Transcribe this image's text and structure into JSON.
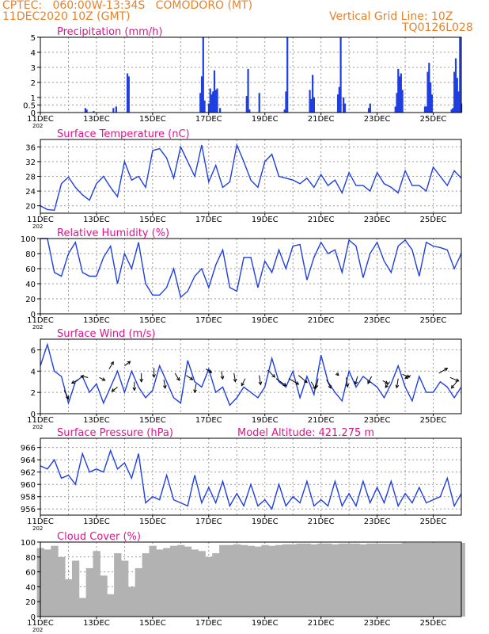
{
  "header": {
    "line1": "CPTEC:   060:00W-13:34S   COMODORO (MT)",
    "line2": "11DEC2020 10Z (GMT)",
    "grid_note": "Vertical Grid Line: 10Z",
    "code": "TQ0126L028",
    "year_marker": "202"
  },
  "colors": {
    "header": "#e8822a",
    "title": "#e0148c",
    "series": "#1f3fe0",
    "cloud": "#b2b2b2"
  },
  "x_axis": {
    "labels": [
      "11DEC",
      "13DEC",
      "15DEC",
      "17DEC",
      "19DEC",
      "21DEC",
      "23DEC",
      "25DEC"
    ],
    "start_day": 11,
    "end_day": 26
  },
  "chart_data": [
    {
      "id": "precip",
      "type": "bar",
      "title": "Precipitation (mm/h)",
      "ylim": [
        0,
        5
      ],
      "yticks": [
        0,
        0.5,
        1,
        2,
        3,
        4,
        5
      ],
      "x": [
        12.6,
        12.65,
        12.9,
        13.6,
        13.7,
        14.1,
        14.15,
        16.7,
        16.75,
        16.8,
        16.85,
        17.0,
        17.05,
        17.1,
        17.15,
        17.2,
        17.25,
        17.3,
        17.4,
        18.35,
        18.4,
        18.45,
        18.8,
        19.7,
        19.75,
        19.8,
        20.6,
        20.65,
        20.7,
        20.75,
        21.6,
        21.65,
        21.7,
        21.8,
        21.85,
        22.7,
        22.75,
        23.65,
        23.7,
        23.75,
        23.8,
        23.85,
        23.9,
        24.7,
        24.75,
        24.8,
        24.85,
        24.9,
        24.95,
        25.65,
        25.7,
        25.75,
        25.8,
        25.85,
        25.9,
        25.95,
        26.0
      ],
      "values": [
        0.3,
        0.2,
        0.1,
        0.3,
        0.4,
        2.6,
        2.4,
        1.3,
        2.4,
        5.0,
        0.8,
        0.6,
        1.6,
        1.2,
        1.4,
        2.8,
        1.5,
        1.6,
        0.3,
        1.1,
        2.9,
        0.2,
        1.3,
        0.2,
        1.4,
        5.0,
        1.5,
        0.9,
        2.5,
        1.0,
        1.2,
        1.7,
        5.0,
        1.0,
        0.6,
        0.3,
        0.6,
        0.4,
        1.3,
        2.9,
        2.4,
        2.6,
        1.5,
        0.4,
        0.4,
        2.7,
        3.3,
        2.0,
        1.2,
        0.2,
        0.3,
        2.7,
        3.6,
        2.3,
        1.4,
        5.0,
        0.6
      ]
    },
    {
      "id": "temp",
      "type": "line",
      "title": "Surface Temperature (nC)",
      "ylim": [
        18,
        38
      ],
      "yticks": [
        20,
        24,
        28,
        32,
        36
      ],
      "x": [
        11.0,
        11.25,
        11.5,
        11.75,
        12.0,
        12.25,
        12.5,
        12.75,
        13.0,
        13.25,
        13.5,
        13.75,
        14.0,
        14.25,
        14.5,
        14.75,
        15.0,
        15.25,
        15.5,
        15.75,
        16.0,
        16.25,
        16.5,
        16.75,
        17.0,
        17.25,
        17.5,
        17.75,
        18.0,
        18.25,
        18.5,
        18.75,
        19.0,
        19.25,
        19.5,
        19.75,
        20.0,
        20.25,
        20.5,
        20.75,
        21.0,
        21.25,
        21.5,
        21.75,
        22.0,
        22.25,
        22.5,
        22.75,
        23.0,
        23.25,
        23.5,
        23.75,
        24.0,
        24.25,
        24.5,
        24.75,
        25.0,
        25.25,
        25.5,
        25.75,
        26.0
      ],
      "values": [
        20.0,
        19.0,
        18.8,
        26.0,
        27.8,
        25.0,
        23.0,
        21.5,
        26.0,
        28.0,
        25.0,
        22.5,
        32.0,
        27.0,
        28.0,
        25.0,
        35.0,
        35.5,
        33.0,
        27.5,
        36.0,
        32.0,
        28.0,
        36.5,
        26.5,
        31.0,
        25.0,
        26.5,
        36.5,
        32.0,
        27.0,
        25.0,
        32.0,
        34.0,
        28.0,
        27.5,
        27.0,
        26.0,
        27.5,
        25.0,
        28.5,
        25.5,
        27.0,
        23.5,
        29.0,
        25.5,
        25.5,
        24.0,
        29.0,
        26.0,
        25.0,
        23.5,
        29.5,
        25.5,
        25.5,
        24.0,
        30.5,
        28.0,
        25.5,
        29.5,
        27.5
      ]
    },
    {
      "id": "rh",
      "type": "line",
      "title": "Relative Humidity (%)",
      "ylim": [
        0,
        100
      ],
      "yticks": [
        0,
        20,
        40,
        60,
        80,
        100
      ],
      "x": [
        11.0,
        11.25,
        11.5,
        11.75,
        12.0,
        12.25,
        12.5,
        12.75,
        13.0,
        13.25,
        13.5,
        13.75,
        14.0,
        14.25,
        14.5,
        14.75,
        15.0,
        15.25,
        15.5,
        15.75,
        16.0,
        16.25,
        16.5,
        16.75,
        17.0,
        17.25,
        17.5,
        17.75,
        18.0,
        18.25,
        18.5,
        18.75,
        19.0,
        19.25,
        19.5,
        19.75,
        20.0,
        20.25,
        20.5,
        20.75,
        21.0,
        21.25,
        21.5,
        21.75,
        22.0,
        22.25,
        22.5,
        22.75,
        23.0,
        23.25,
        23.5,
        23.75,
        24.0,
        24.25,
        24.5,
        24.75,
        25.0,
        25.25,
        25.5,
        25.75,
        26.0
      ],
      "values": [
        100.0,
        100.0,
        55.0,
        50.0,
        80.0,
        95.0,
        55.0,
        50.0,
        50.0,
        75.0,
        90.0,
        40.0,
        80.0,
        60.0,
        95.0,
        40.0,
        25.0,
        25.0,
        35.0,
        60.0,
        22.0,
        30.0,
        50.0,
        60.0,
        35.0,
        65.0,
        85.0,
        35.0,
        30.0,
        75.0,
        75.0,
        35.0,
        70.0,
        55.0,
        85.0,
        60.0,
        90.0,
        92.0,
        45.0,
        75.0,
        95.0,
        80.0,
        85.0,
        55.0,
        98.0,
        90.0,
        48.0,
        80.0,
        95.0,
        70.0,
        55.0,
        90.0,
        98.0,
        85.0,
        50.0,
        95.0,
        90.0,
        88.0,
        85.0,
        60.0,
        80.0
      ]
    },
    {
      "id": "wind",
      "type": "line",
      "title": "Surface Wind (m/s)",
      "ylim": [
        0,
        7
      ],
      "yticks": [
        0,
        2,
        4,
        6
      ],
      "x": [
        11.0,
        11.25,
        11.5,
        11.75,
        12.0,
        12.25,
        12.5,
        12.75,
        13.0,
        13.25,
        13.5,
        13.75,
        14.0,
        14.25,
        14.5,
        14.75,
        15.0,
        15.25,
        15.5,
        15.75,
        16.0,
        16.25,
        16.5,
        16.75,
        17.0,
        17.25,
        17.5,
        17.75,
        18.0,
        18.25,
        18.5,
        18.75,
        19.0,
        19.25,
        19.5,
        19.75,
        20.0,
        20.25,
        20.5,
        20.75,
        21.0,
        21.25,
        21.5,
        21.75,
        22.0,
        22.25,
        22.5,
        22.75,
        23.0,
        23.25,
        23.5,
        23.75,
        24.0,
        24.25,
        24.5,
        24.75,
        25.0,
        25.25,
        25.5,
        25.75,
        26.0
      ],
      "values": [
        4.5,
        6.5,
        4.0,
        3.5,
        1.0,
        3.0,
        3.5,
        2.0,
        2.8,
        1.0,
        2.5,
        4.0,
        2.0,
        4.0,
        2.5,
        1.5,
        2.2,
        4.5,
        3.0,
        1.5,
        1.0,
        5.0,
        3.0,
        2.5,
        4.2,
        2.0,
        2.5,
        0.8,
        1.5,
        2.5,
        2.0,
        1.5,
        2.5,
        5.2,
        3.0,
        2.5,
        4.0,
        1.5,
        3.5,
        1.8,
        5.5,
        3.0,
        2.0,
        1.2,
        4.0,
        2.5,
        3.5,
        3.0,
        2.5,
        1.5,
        2.8,
        4.5,
        2.5,
        1.2,
        3.5,
        2.0,
        2.0,
        3.0,
        2.5,
        1.5,
        2.5
      ],
      "vectors": [
        {
          "x": 11.85,
          "y": 2.2,
          "u": 0.6,
          "v": -1.2
        },
        {
          "x": 12.35,
          "y": 3.2,
          "u": -0.9,
          "v": -0.5
        },
        {
          "x": 12.7,
          "y": 3.4,
          "u": -1.0,
          "v": 0.2
        },
        {
          "x": 13.1,
          "y": 3.4,
          "u": 0.8,
          "v": -0.4
        },
        {
          "x": 13.45,
          "y": 4.2,
          "u": 0.6,
          "v": 1.0
        },
        {
          "x": 13.75,
          "y": 2.5,
          "u": -0.8,
          "v": -0.6
        },
        {
          "x": 14.0,
          "y": 4.5,
          "u": 0.8,
          "v": 0.6
        },
        {
          "x": 14.35,
          "y": 3.0,
          "u": 0.0,
          "v": -1.2
        },
        {
          "x": 14.6,
          "y": 3.8,
          "u": 0.0,
          "v": -1.2
        },
        {
          "x": 15.05,
          "y": 4.3,
          "u": 0.0,
          "v": -1.3
        },
        {
          "x": 15.4,
          "y": 3.2,
          "u": 0.2,
          "v": -1.2
        },
        {
          "x": 15.8,
          "y": 3.8,
          "u": 0.6,
          "v": -1.0
        },
        {
          "x": 16.2,
          "y": 3.6,
          "u": 0.9,
          "v": -0.6
        },
        {
          "x": 16.55,
          "y": 2.8,
          "u": -0.2,
          "v": -1.2
        },
        {
          "x": 16.9,
          "y": 4.2,
          "u": 0.8,
          "v": -0.5
        },
        {
          "x": 17.45,
          "y": 4.0,
          "u": 0.2,
          "v": -1.1
        },
        {
          "x": 17.9,
          "y": 3.8,
          "u": 0.2,
          "v": -1.2
        },
        {
          "x": 18.3,
          "y": 3.3,
          "u": -0.5,
          "v": -1.0
        },
        {
          "x": 18.8,
          "y": 3.6,
          "u": 0.2,
          "v": -1.3
        },
        {
          "x": 19.1,
          "y": 4.1,
          "u": 1.0,
          "v": -1.0
        },
        {
          "x": 19.4,
          "y": 3.3,
          "u": 1.4,
          "v": -1.0
        },
        {
          "x": 19.85,
          "y": 3.3,
          "u": 1.4,
          "v": -0.8
        },
        {
          "x": 20.2,
          "y": 3.6,
          "u": 1.2,
          "v": -1.0
        },
        {
          "x": 20.65,
          "y": 3.0,
          "u": 0.6,
          "v": -1.0
        },
        {
          "x": 20.9,
          "y": 3.3,
          "u": -0.3,
          "v": -1.3
        },
        {
          "x": 21.2,
          "y": 3.2,
          "u": 0.6,
          "v": -1.2
        },
        {
          "x": 21.55,
          "y": 3.8,
          "u": 0.3,
          "v": -0.3
        },
        {
          "x": 21.9,
          "y": 3.4,
          "u": 0.2,
          "v": -1.3
        },
        {
          "x": 22.3,
          "y": 3.5,
          "u": -0.3,
          "v": -1.1
        },
        {
          "x": 22.8,
          "y": 3.5,
          "u": -0.5,
          "v": -1.0
        },
        {
          "x": 23.2,
          "y": 3.1,
          "u": 0.7,
          "v": -0.4
        },
        {
          "x": 23.45,
          "y": 3.0,
          "u": -0.6,
          "v": -0.8
        },
        {
          "x": 23.75,
          "y": 3.3,
          "u": -0.2,
          "v": -1.3
        },
        {
          "x": 23.9,
          "y": 3.7,
          "u": 1.0,
          "v": -0.4
        },
        {
          "x": 24.2,
          "y": 3.6,
          "u": -0.8,
          "v": -0.4
        },
        {
          "x": 25.2,
          "y": 3.8,
          "u": 1.2,
          "v": 0.7
        },
        {
          "x": 25.6,
          "y": 3.4,
          "u": 1.2,
          "v": -0.5
        },
        {
          "x": 25.9,
          "y": 3.2,
          "u": -1.0,
          "v": -1.2
        }
      ]
    },
    {
      "id": "press",
      "type": "line",
      "title": "Surface Pressure (hPa)",
      "annotation": "Model Altitude: 421.275 m",
      "ylim": [
        955,
        967.5
      ],
      "yticks": [
        956,
        958,
        960,
        962,
        964,
        966
      ],
      "x": [
        11.0,
        11.25,
        11.5,
        11.75,
        12.0,
        12.25,
        12.5,
        12.75,
        13.0,
        13.25,
        13.5,
        13.75,
        14.0,
        14.25,
        14.5,
        14.75,
        15.0,
        15.25,
        15.5,
        15.75,
        16.0,
        16.25,
        16.5,
        16.75,
        17.0,
        17.25,
        17.5,
        17.75,
        18.0,
        18.25,
        18.5,
        18.75,
        19.0,
        19.25,
        19.5,
        19.75,
        20.0,
        20.25,
        20.5,
        20.75,
        21.0,
        21.25,
        21.5,
        21.75,
        22.0,
        22.25,
        22.5,
        22.75,
        23.0,
        23.25,
        23.5,
        23.75,
        24.0,
        24.25,
        24.5,
        24.75,
        25.0,
        25.25,
        25.5,
        25.75,
        26.0
      ],
      "values": [
        963.0,
        962.5,
        964.0,
        961.0,
        961.5,
        960.0,
        965.0,
        962.0,
        962.5,
        962.0,
        965.5,
        962.5,
        963.5,
        961.0,
        965.0,
        957.0,
        958.0,
        957.5,
        961.5,
        957.5,
        957.0,
        956.5,
        961.5,
        957.0,
        959.5,
        957.0,
        960.5,
        956.5,
        958.5,
        956.5,
        960.0,
        956.5,
        957.5,
        956.0,
        960.0,
        956.5,
        958.0,
        957.0,
        960.5,
        956.5,
        957.5,
        956.5,
        960.5,
        956.5,
        958.5,
        956.5,
        960.5,
        957.0,
        959.5,
        957.0,
        960.5,
        956.5,
        958.5,
        957.0,
        959.5,
        957.0,
        957.5,
        958.0,
        961.0,
        956.5,
        958.5
      ]
    },
    {
      "id": "cloud",
      "type": "bar",
      "title": "Cloud Cover (%)",
      "ylim": [
        0,
        100
      ],
      "yticks": [
        0,
        20,
        40,
        60,
        80,
        100
      ],
      "x": [
        11.0,
        11.25,
        11.5,
        11.75,
        12.0,
        12.25,
        12.5,
        12.75,
        13.0,
        13.25,
        13.5,
        13.75,
        14.0,
        14.25,
        14.5,
        14.75,
        15.0,
        15.25,
        15.5,
        15.75,
        16.0,
        16.25,
        16.5,
        16.75,
        17.0,
        17.25,
        17.5,
        17.75,
        18.0,
        18.25,
        18.5,
        18.75,
        19.0,
        19.25,
        19.5,
        19.75,
        20.0,
        20.25,
        20.5,
        20.75,
        21.0,
        21.25,
        21.5,
        21.75,
        22.0,
        22.25,
        22.5,
        22.75,
        23.0,
        23.25,
        23.5,
        23.75,
        24.0,
        24.25,
        24.5,
        24.75,
        25.0,
        25.25,
        25.5,
        25.75,
        26.0
      ],
      "values": [
        92,
        90,
        95,
        80,
        50,
        75,
        25,
        65,
        88,
        55,
        30,
        85,
        75,
        40,
        65,
        85,
        95,
        90,
        92,
        95,
        96,
        94,
        90,
        88,
        80,
        85,
        96,
        96,
        97,
        96,
        95,
        94,
        96,
        95,
        96,
        97,
        97,
        98,
        98,
        97,
        98,
        98,
        97,
        98,
        98,
        98,
        97,
        98,
        98,
        98,
        98,
        98,
        99,
        99,
        99,
        99,
        99,
        99,
        99,
        99,
        99
      ]
    }
  ]
}
